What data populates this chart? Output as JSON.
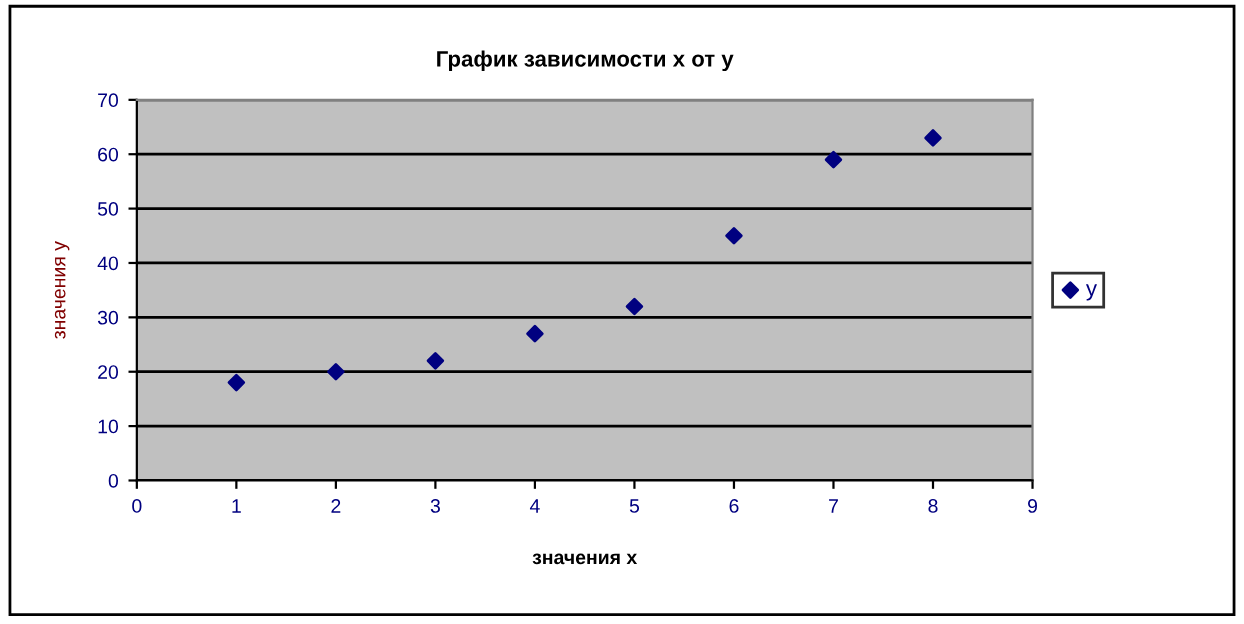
{
  "chart_data": {
    "type": "scatter",
    "title": "График зависимости x от y",
    "xlabel": "значения x",
    "ylabel": "значения y",
    "x": [
      1,
      2,
      3,
      4,
      5,
      6,
      7,
      8
    ],
    "series": [
      {
        "name": "y",
        "color": "#000080",
        "values": [
          18,
          20,
          22,
          27,
          32,
          45,
          59,
          63
        ]
      }
    ],
    "xlim": [
      0,
      9
    ],
    "xticks": [
      0,
      1,
      2,
      3,
      4,
      5,
      6,
      7,
      8,
      9
    ],
    "ylim": [
      0,
      70
    ],
    "yticks": [
      0,
      10,
      20,
      30,
      40,
      50,
      60,
      70
    ],
    "grid": "y",
    "legend": "right",
    "marker": "diamond"
  }
}
